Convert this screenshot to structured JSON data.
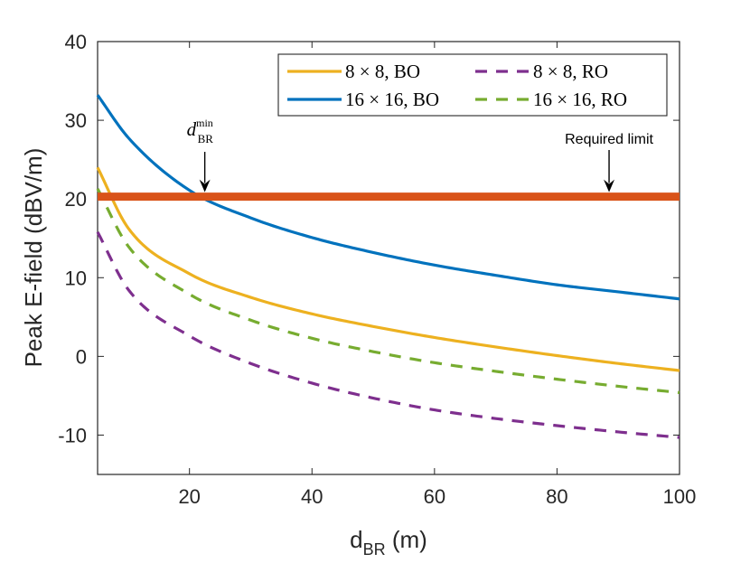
{
  "chart_data": {
    "type": "line",
    "xlabel_main": "d",
    "xlabel_sub": "BR",
    "xlabel_unit": " (m)",
    "ylabel": "Peak E-field (dBV/m)",
    "xlim": [
      5,
      100
    ],
    "ylim": [
      -15,
      40
    ],
    "xticks": [
      20,
      40,
      60,
      80,
      100
    ],
    "xtick_labels": [
      "20",
      "40",
      "60",
      "80",
      "100"
    ],
    "yticks": [
      -10,
      0,
      10,
      20,
      30,
      40
    ],
    "ytick_labels": [
      "-10",
      "0",
      "10",
      "20",
      "30",
      "40"
    ],
    "legend_position": "top-right",
    "series": [
      {
        "name": "8 × 8, BO",
        "color": "#EDB120",
        "style": "solid",
        "x": [
          5,
          10,
          20,
          30,
          40,
          50,
          60,
          70,
          80,
          90,
          100
        ],
        "y": [
          24.0,
          16.3,
          10.5,
          7.5,
          5.4,
          3.8,
          2.4,
          1.2,
          0.1,
          -0.9,
          -1.8
        ]
      },
      {
        "name": "16 × 16, BO",
        "color": "#0072BD",
        "style": "solid",
        "x": [
          5,
          10,
          20,
          30,
          40,
          50,
          60,
          70,
          80,
          90,
          100
        ],
        "y": [
          33.2,
          27.8,
          21.1,
          17.6,
          15.1,
          13.2,
          11.6,
          10.3,
          9.1,
          8.2,
          7.3
        ]
      },
      {
        "name": "8 × 8, RO",
        "color": "#7E2F8E",
        "style": "dashed",
        "x": [
          5,
          10,
          20,
          30,
          40,
          50,
          60,
          70,
          80,
          90,
          100
        ],
        "y": [
          15.8,
          8.5,
          2.6,
          -0.9,
          -3.4,
          -5.3,
          -6.8,
          -7.9,
          -8.8,
          -9.6,
          -10.3
        ]
      },
      {
        "name": "16 × 16, RO",
        "color": "#77AC30",
        "style": "dashed",
        "x": [
          5,
          10,
          20,
          30,
          40,
          50,
          60,
          70,
          80,
          90,
          100
        ],
        "y": [
          21.3,
          14.0,
          7.9,
          4.6,
          2.3,
          0.6,
          -0.8,
          -1.9,
          -2.9,
          -3.8,
          -4.6
        ]
      }
    ],
    "threshold": {
      "name": "Required limit",
      "value": 20.3,
      "color": "#D95319"
    },
    "annotations": [
      {
        "label_main": "d",
        "label_sub": "BR",
        "label_sup": "min",
        "x": 22.5,
        "y": 20.3
      },
      {
        "label": "Required limit",
        "x": 88.5,
        "y": 20.3
      }
    ]
  }
}
